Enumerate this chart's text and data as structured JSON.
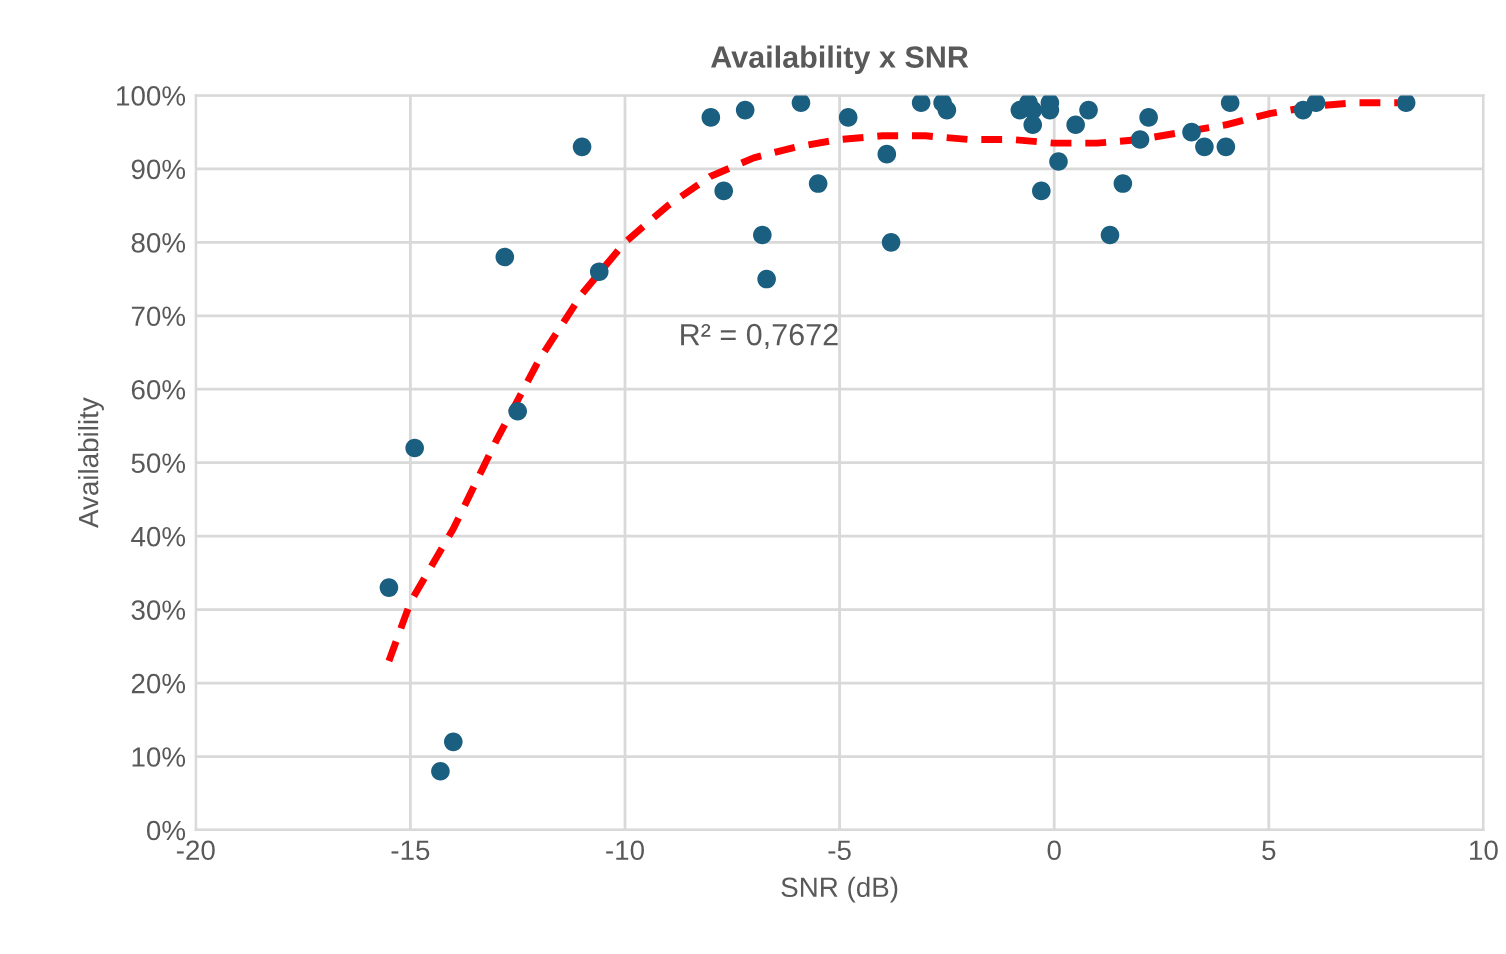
{
  "chart_data": {
    "type": "scatter",
    "title": "Availability x SNR",
    "xlabel": "SNR (dB)",
    "ylabel": "Availability",
    "xlim": [
      -20,
      10
    ],
    "xticks": [
      -20,
      -15,
      -10,
      -5,
      0,
      5,
      10
    ],
    "ylim": [
      0,
      100
    ],
    "yticks": [
      {
        "value": 0,
        "label": "0%"
      },
      {
        "value": 10,
        "label": "10%"
      },
      {
        "value": 20,
        "label": "20%"
      },
      {
        "value": 30,
        "label": "30%"
      },
      {
        "value": 40,
        "label": "40%"
      },
      {
        "value": 50,
        "label": "50%"
      },
      {
        "value": 60,
        "label": "60%"
      },
      {
        "value": 70,
        "label": "70%"
      },
      {
        "value": 80,
        "label": "80%"
      },
      {
        "value": 90,
        "label": "90%"
      },
      {
        "value": 100,
        "label": "100%"
      }
    ],
    "grid": true,
    "annotations": [
      "R² = 0,7672"
    ],
    "series": [
      {
        "color": "#1a5e80",
        "marker": "circle",
        "x": [
          -15.5,
          -14.9,
          -14.3,
          -14.0,
          -12.8,
          -12.5,
          -11.0,
          -10.6,
          -8.0,
          -7.7,
          -7.2,
          -6.8,
          -6.7,
          -5.9,
          -5.5,
          -4.8,
          -3.9,
          -3.8,
          -3.1,
          -2.6,
          -2.5,
          -0.8,
          -0.6,
          -0.5,
          -0.5,
          -0.3,
          -0.1,
          -0.1,
          0.1,
          0.5,
          0.8,
          1.3,
          1.6,
          2.0,
          2.2,
          3.2,
          3.5,
          4.0,
          4.1,
          5.8,
          6.1,
          8.2
        ],
        "values": [
          33,
          52,
          8,
          12,
          78,
          57,
          93,
          76,
          97,
          87,
          98,
          81,
          75,
          99,
          88,
          97,
          92,
          80,
          99,
          99,
          98,
          98,
          99,
          98,
          96,
          87,
          99,
          98,
          91,
          96,
          98,
          81,
          88,
          94,
          97,
          95,
          93,
          93,
          99,
          98,
          99,
          99
        ]
      },
      {
        "type": "line",
        "color": "#ff0000",
        "line_style": "dashed",
        "marker": "none",
        "x": [
          -15.5,
          -15,
          -14,
          -13,
          -12,
          -11,
          -10,
          -9,
          -8,
          -7,
          -6,
          -5,
          -4,
          -3,
          -2,
          -1,
          0,
          1,
          2,
          3,
          4,
          5,
          6,
          7,
          8
        ],
        "values": [
          23,
          31,
          41,
          53,
          64,
          73,
          80,
          85,
          89,
          91.5,
          93,
          94,
          94.5,
          94.5,
          94,
          94,
          93.5,
          93.5,
          94,
          95,
          96,
          97.5,
          98.5,
          99,
          99
        ]
      }
    ]
  }
}
